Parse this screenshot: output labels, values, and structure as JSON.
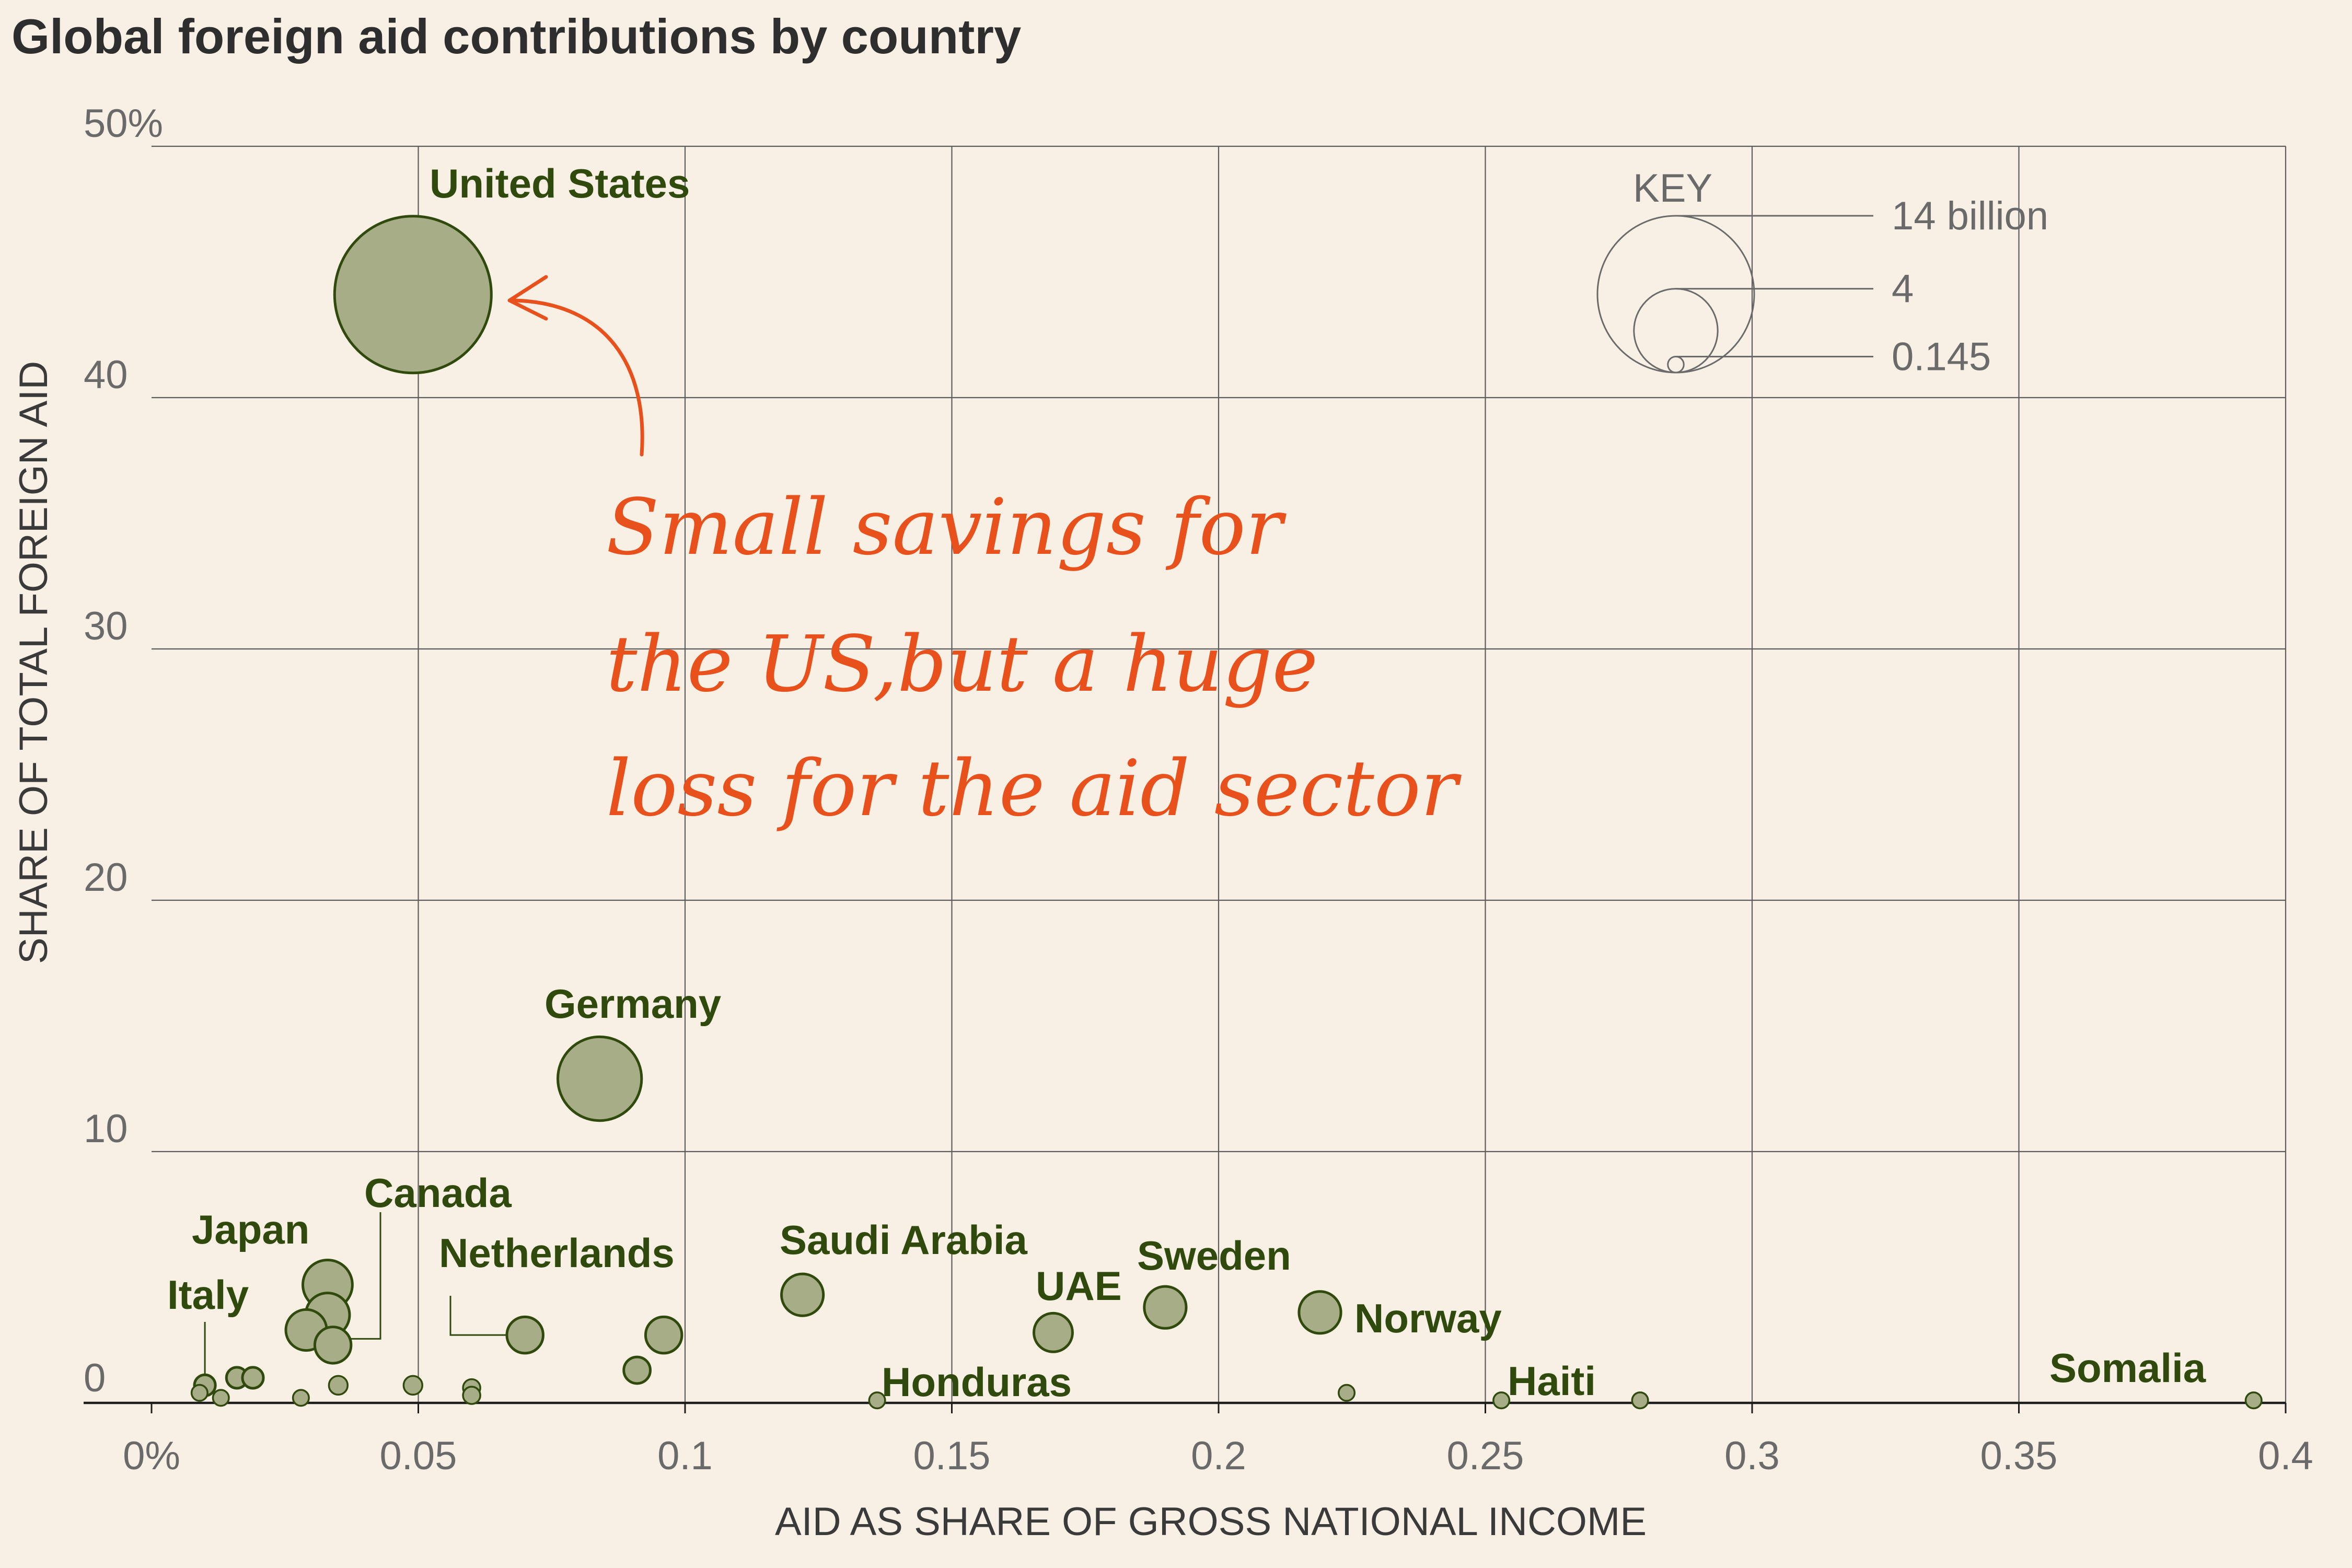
{
  "chart_data": {
    "type": "scatter",
    "title": "Global foreign aid contributions by country",
    "xlabel": "AID AS SHARE OF GROSS NATIONAL INCOME",
    "ylabel": "SHARE OF TOTAL FOREIGN AID",
    "xlim": [
      0,
      0.4
    ],
    "ylim": [
      0,
      50
    ],
    "x_ticks": [
      "0%",
      "0.05",
      "0.1",
      "0.15",
      "0.2",
      "0.25",
      "0.3",
      "0.35",
      "0.4"
    ],
    "y_ticks": [
      "0",
      "10",
      "20",
      "30",
      "40",
      "50%"
    ],
    "grid": true,
    "colors": {
      "bubble_fill": "#a7ad86",
      "bubble_stroke": "#2f4a0c",
      "label": "#2f4a0c",
      "annotation": "#e8501c",
      "background": "#f8efe5"
    },
    "points": [
      {
        "label": "United States",
        "x": 0.049,
        "y": 44.1,
        "aid_billion": 14
      },
      {
        "label": "Germany",
        "x": 0.084,
        "y": 12.9,
        "aid_billion": 4
      },
      {
        "label": "Japan",
        "x": 0.033,
        "y": 4.7,
        "aid_billion": 1.4
      },
      {
        "label": "",
        "x": 0.033,
        "y": 3.5,
        "aid_billion": 1.1
      },
      {
        "label": "",
        "x": 0.029,
        "y": 2.9,
        "aid_billion": 0.95
      },
      {
        "label": "Canada",
        "x": 0.034,
        "y": 2.3,
        "aid_billion": 0.75
      },
      {
        "label": "Netherlands",
        "x": 0.07,
        "y": 2.7,
        "aid_billion": 0.75
      },
      {
        "label": "",
        "x": 0.096,
        "y": 2.7,
        "aid_billion": 0.75
      },
      {
        "label": "",
        "x": 0.091,
        "y": 1.3,
        "aid_billion": 0.4
      },
      {
        "label": "Saudi Arabia",
        "x": 0.122,
        "y": 4.3,
        "aid_billion": 1.0
      },
      {
        "label": "UAE",
        "x": 0.169,
        "y": 2.8,
        "aid_billion": 0.85
      },
      {
        "label": "Sweden",
        "x": 0.19,
        "y": 3.8,
        "aid_billion": 1.0
      },
      {
        "label": "Norway",
        "x": 0.219,
        "y": 3.6,
        "aid_billion": 1.0
      },
      {
        "label": "Italy",
        "x": 0.01,
        "y": 0.7,
        "aid_billion": 0.25
      },
      {
        "label": "",
        "x": 0.016,
        "y": 1.0,
        "aid_billion": 0.25
      },
      {
        "label": "",
        "x": 0.019,
        "y": 1.0,
        "aid_billion": 0.25
      },
      {
        "label": "",
        "x": 0.035,
        "y": 0.7,
        "aid_billion": 0.2
      },
      {
        "label": "",
        "x": 0.049,
        "y": 0.7,
        "aid_billion": 0.2
      },
      {
        "label": "",
        "x": 0.06,
        "y": 0.6,
        "aid_billion": 0.17
      },
      {
        "label": "",
        "x": 0.06,
        "y": 0.3,
        "aid_billion": 0.17
      },
      {
        "label": "",
        "x": 0.028,
        "y": 0.2,
        "aid_billion": 0.145
      },
      {
        "label": "",
        "x": 0.013,
        "y": 0.2,
        "aid_billion": 0.145
      },
      {
        "label": "",
        "x": 0.009,
        "y": 0.4,
        "aid_billion": 0.145
      },
      {
        "label": "Honduras",
        "x": 0.136,
        "y": 0.1,
        "aid_billion": 0.145
      },
      {
        "label": "",
        "x": 0.224,
        "y": 0.4,
        "aid_billion": 0.145
      },
      {
        "label": "Haiti",
        "x": 0.253,
        "y": 0.1,
        "aid_billion": 0.145
      },
      {
        "label": "",
        "x": 0.279,
        "y": 0.1,
        "aid_billion": 0.145
      },
      {
        "label": "Somalia",
        "x": 0.394,
        "y": 0.1,
        "aid_billion": 0.145
      }
    ],
    "key": {
      "title": "KEY",
      "labels": [
        "14 billion",
        "4",
        "0.145"
      ],
      "values": [
        14,
        4,
        0.145
      ]
    },
    "annotation": [
      "Small savings for",
      "the US,but a huge",
      "loss for the aid sector"
    ]
  }
}
